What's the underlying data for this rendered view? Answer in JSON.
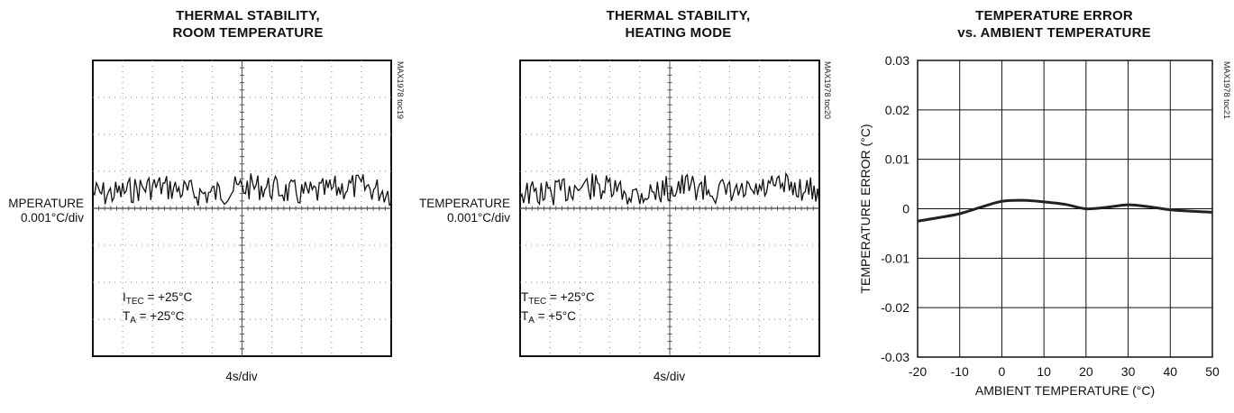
{
  "chart_data": [
    {
      "type": "line",
      "title_line1": "THERMAL STABILITY,",
      "title_line2": "ROOM TEMPERATURE",
      "ylabel_line1": "MPERATURE",
      "ylabel_line2": "0.001°C/div",
      "xlabel": "4s/div",
      "code": "MAX1978 toc19",
      "annotation": {
        "line1_main": "I",
        "line1_sub": "TEC",
        "line1_rest": " = +25°C",
        "line2_main": "T",
        "line2_sub": "A",
        "line2_rest": " = +25°C"
      },
      "grid": true
    },
    {
      "type": "line",
      "title_line1": "THERMAL STABILITY,",
      "title_line2": "HEATING MODE",
      "ylabel_line1": "TEMPERATURE",
      "ylabel_line2": "0.001°C/div",
      "xlabel": "4s/div",
      "code": "MAX1978 toc20",
      "annotation": {
        "line1_main": "T",
        "line1_sub": "TEC",
        "line1_rest": " = +25°C",
        "line2_main": "T",
        "line2_sub": "A",
        "line2_rest": " = +5°C"
      },
      "grid": true
    },
    {
      "type": "line",
      "title_line1": "TEMPERATURE ERROR",
      "title_line2": "vs. AMBIENT TEMPERATURE",
      "xlabel": "AMBIENT TEMPERATURE (°C)",
      "ylabel": "TEMPERATURE ERROR (°C)",
      "code": "MAX1978 toc21",
      "xlim": [
        -20,
        50
      ],
      "ylim": [
        -0.03,
        0.03
      ],
      "xticks": [
        "-20",
        "-10",
        "0",
        "10",
        "20",
        "30",
        "40",
        "50"
      ],
      "yticks": [
        "0.03",
        "0.02",
        "0.01",
        "0",
        "-0.01",
        "-0.02",
        "-0.03"
      ],
      "grid": true,
      "series": [
        {
          "x": [
            -20,
            -15,
            -10,
            -5,
            0,
            5,
            10,
            15,
            20,
            25,
            30,
            35,
            40,
            45,
            50
          ],
          "y": [
            -0.0025,
            -0.0018,
            -0.001,
            0.0003,
            0.0015,
            0.0017,
            0.0014,
            0.0009,
            0.0,
            0.0003,
            0.0008,
            0.0004,
            -0.0002,
            -0.0005,
            -0.0007
          ]
        }
      ]
    }
  ]
}
